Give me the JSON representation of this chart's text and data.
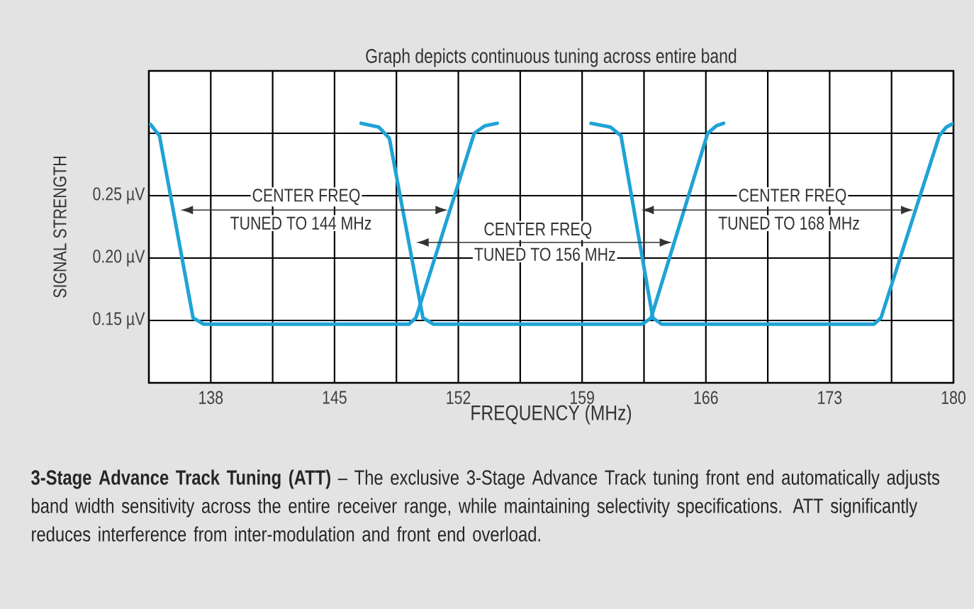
{
  "chart_data": {
    "type": "line",
    "title": "Graph depicts continuous tuning across entire band",
    "xlabel": "FREQUENCY (MHz)",
    "ylabel": "SIGNAL STRENGTH",
    "series": [
      {
        "color": "#1fa3d6",
        "x": [
          134.6,
          135.1,
          137.0,
          137.6,
          149.2,
          149.6,
          152.9,
          153.5,
          154.2
        ],
        "values": [
          0.307,
          0.298,
          0.152,
          0.147,
          0.147,
          0.152,
          0.3,
          0.306,
          0.308
        ]
      },
      {
        "color": "#1fa3d6",
        "x": [
          146.5,
          147.5,
          148.1,
          150.0,
          150.6,
          162.4,
          162.9,
          166.1,
          166.6,
          167.0
        ],
        "values": [
          0.308,
          0.305,
          0.296,
          0.152,
          0.147,
          0.147,
          0.152,
          0.3,
          0.306,
          0.308
        ]
      },
      {
        "color": "#1fa3d6",
        "x": [
          159.5,
          160.6,
          161.2,
          163.0,
          163.5,
          175.5,
          175.9,
          179.2,
          179.6,
          180.0
        ],
        "values": [
          0.308,
          0.305,
          0.298,
          0.152,
          0.147,
          0.147,
          0.152,
          0.298,
          0.305,
          0.308
        ]
      }
    ],
    "xlim": [
      134.5,
      180
    ],
    "xticks": [
      {
        "value": 134.5,
        "label": null
      },
      138,
      {
        "value": 141.5,
        "label": null
      },
      145,
      {
        "value": 148.5,
        "label": null
      },
      152,
      {
        "value": 155.5,
        "label": null
      },
      159,
      {
        "value": 162.5,
        "label": null
      },
      166,
      {
        "value": 169.5,
        "label": null
      },
      173,
      {
        "value": 176.5,
        "label": null
      },
      180
    ],
    "ylim": [
      0.1,
      0.35
    ],
    "yticks": [
      {
        "value": 0.1,
        "label": null
      },
      {
        "value": 0.15,
        "label": "0.15 µV"
      },
      {
        "value": 0.2,
        "label": "0.20 µV"
      },
      {
        "value": 0.25,
        "label": "0.25 µV"
      },
      {
        "value": 0.3,
        "label": null
      },
      {
        "value": 0.35,
        "label": null
      }
    ],
    "grid": true,
    "legend": false,
    "marker": "none",
    "line_style": "solid",
    "annotations": [
      "CENTER FREQ",
      "TUNED TO 144 MHz",
      "CENTER FREQ",
      "TUNED TO 156 MHz",
      "CENTER FREQ",
      "TUNED TO 168 MHz",
      "**3-Stage Advance Track Tuning (ATT)** – The exclusive 3-Stage Advance Track tuning front end automatically adjusts band width sensitivity across the entire receiver range, while maintaining selectivity specifications. ATT significantly reduces interference from inter-modulation and front end overload."
    ]
  }
}
